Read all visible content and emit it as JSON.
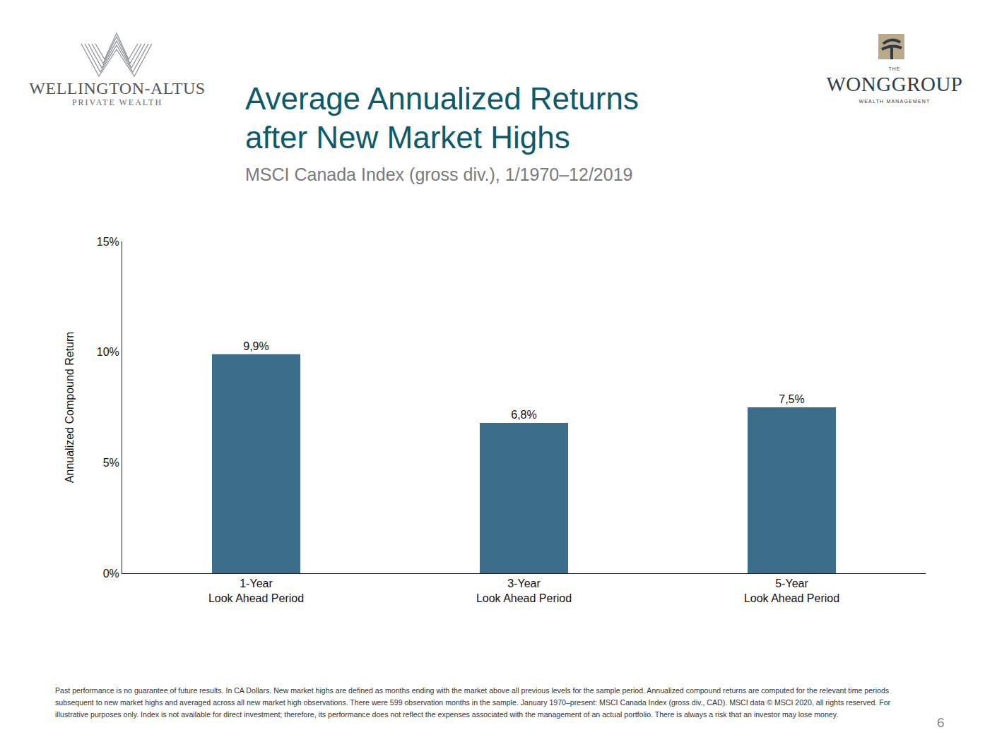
{
  "chart_data": {
    "type": "bar",
    "title": "Average Annualized Returns\nafter New Market Highs",
    "subtitle": "MSCI Canada Index (gross div.), 1/1970–12/2019",
    "y_label": "Annualized Compound Return",
    "categories": [
      "1-Year\nLook Ahead Period",
      "3-Year\nLook Ahead Period",
      "5-Year\nLook Ahead Period"
    ],
    "values": [
      9.9,
      6.8,
      7.5
    ],
    "value_labels": [
      "9,9%",
      "6,8%",
      "7,5%"
    ],
    "data_labels": true,
    "color": "#3c6e8c",
    "ylim": [
      0,
      15
    ],
    "yticks": [
      {
        "value": 0,
        "label": "0%"
      },
      {
        "value": 5,
        "label": "5%"
      },
      {
        "value": 10,
        "label": "10%"
      },
      {
        "value": 15,
        "label": "15%"
      }
    ],
    "grid": false
  },
  "page": {
    "logo_left": {
      "name": "WELLINGTON-ALTUS",
      "tagline": "PRIVATE WEALTH"
    },
    "logo_right": {
      "prefix": "THE",
      "name": "WONGGROUP",
      "tagline": "WEALTH MANAGEMENT"
    },
    "footnote": "Past performance is no guarantee of future results. In CA Dollars. New market highs are defined as months ending with the market above all previous levels for the sample period. Annualized compound returns are computed for the relevant time periods subsequent to new market highs and averaged across all new market high observations. There were 599 observation months in the sample. January 1970–present: MSCI Canada Index (gross div., CAD). MSCI data © MSCI 2020, all rights reserved. For illustrative purposes only. Index is not available for direct investment; therefore, its performance does not reflect the expenses associated with the management of an actual portfolio. There is always a risk that an investor may lose money.",
    "page_number": "6"
  }
}
